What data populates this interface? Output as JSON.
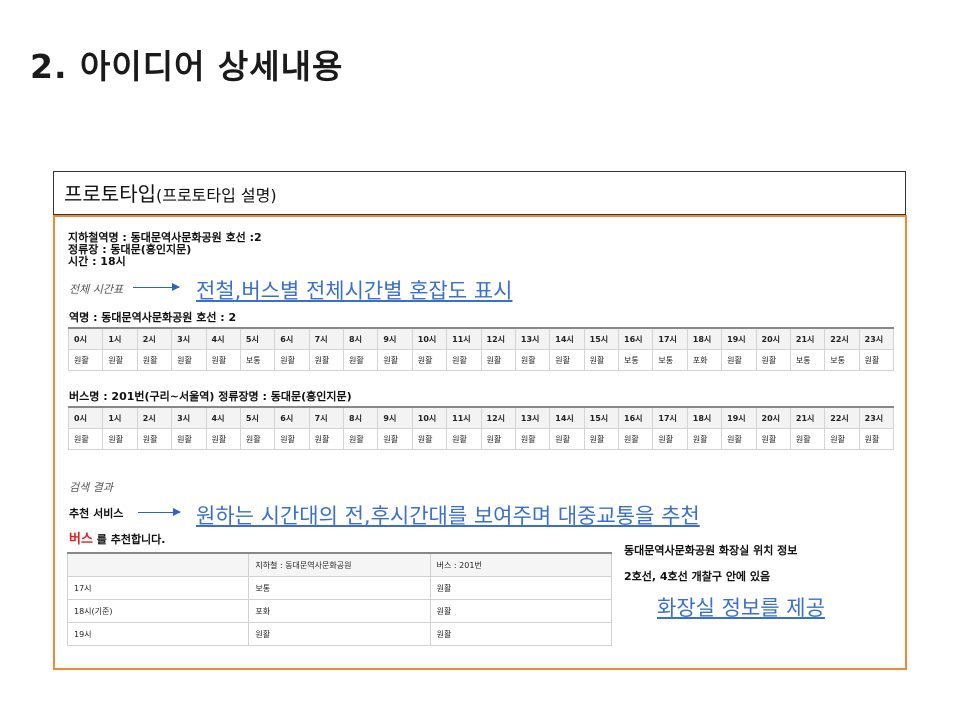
{
  "slide": {
    "title": "2. 아이디어 상세내용"
  },
  "prototype": {
    "label": "프로토타입",
    "sub": "(프로토타입 설명)"
  },
  "info": {
    "subway_station": "지하철역명 : 동대문역사문화공원 호선 :2",
    "bus_stop": "정류장 : 동대문(흥인지문)",
    "time": "시간 : 18시"
  },
  "annotations": {
    "hand_total": "전체 시간표",
    "hand_search": "검색 결과",
    "congestion": "전철,버스별 전체시간별 혼잡도 표시",
    "recommend": "원하는 시간대의 전,후시간대를 보여주며 대중교통을 추천",
    "toilet": "화장실 정보를 제공"
  },
  "subway_table": {
    "label": "역명 : 동대문역사문화공원    호선 : 2",
    "hours": [
      "0시",
      "1시",
      "2시",
      "3시",
      "4시",
      "5시",
      "6시",
      "7시",
      "8시",
      "9시",
      "10시",
      "11시",
      "12시",
      "13시",
      "14시",
      "15시",
      "16시",
      "17시",
      "18시",
      "19시",
      "20시",
      "21시",
      "22시",
      "23시"
    ],
    "status": [
      "원활",
      "원활",
      "원활",
      "원활",
      "원활",
      "보통",
      "원활",
      "원활",
      "원활",
      "원활",
      "원활",
      "원활",
      "원활",
      "원활",
      "원활",
      "원활",
      "보통",
      "보통",
      "포화",
      "원활",
      "원활",
      "보통",
      "보통",
      "원활"
    ]
  },
  "bus_table": {
    "label": "버스명 : 201번(구리~서울역)    정류장명 : 동대문(흥인지문)",
    "hours": [
      "0시",
      "1시",
      "2시",
      "3시",
      "4시",
      "5시",
      "6시",
      "7시",
      "8시",
      "9시",
      "10시",
      "11시",
      "12시",
      "13시",
      "14시",
      "15시",
      "16시",
      "17시",
      "18시",
      "19시",
      "20시",
      "21시",
      "22시",
      "23시"
    ],
    "status": [
      "원활",
      "원활",
      "원활",
      "원활",
      "원활",
      "원활",
      "원활",
      "원활",
      "원활",
      "원활",
      "원활",
      "원활",
      "원활",
      "원활",
      "원활",
      "원활",
      "원활",
      "원활",
      "원활",
      "원활",
      "원활",
      "원활",
      "원활",
      "원활"
    ]
  },
  "recommend": {
    "service_label": "추천 서비스",
    "bus_word": "버스",
    "bus_suffix": " 를 추천합니다.",
    "headers": [
      "",
      "지하철 : 동대문역사문화공원",
      "버스 : 201번"
    ],
    "rows": [
      [
        "17시",
        "보통",
        "원활"
      ],
      [
        "18시(기준)",
        "포화",
        "원활"
      ],
      [
        "19시",
        "원활",
        "원활"
      ]
    ]
  },
  "toilet": {
    "title": "동대문역사문화공원 화장실 위치 정보",
    "location": "2호선, 4호선 개찰구 안에 있음"
  },
  "colors": {
    "accent_orange": "#ef8a3a",
    "link_blue": "#3a6fcf",
    "red": "#e02020"
  }
}
